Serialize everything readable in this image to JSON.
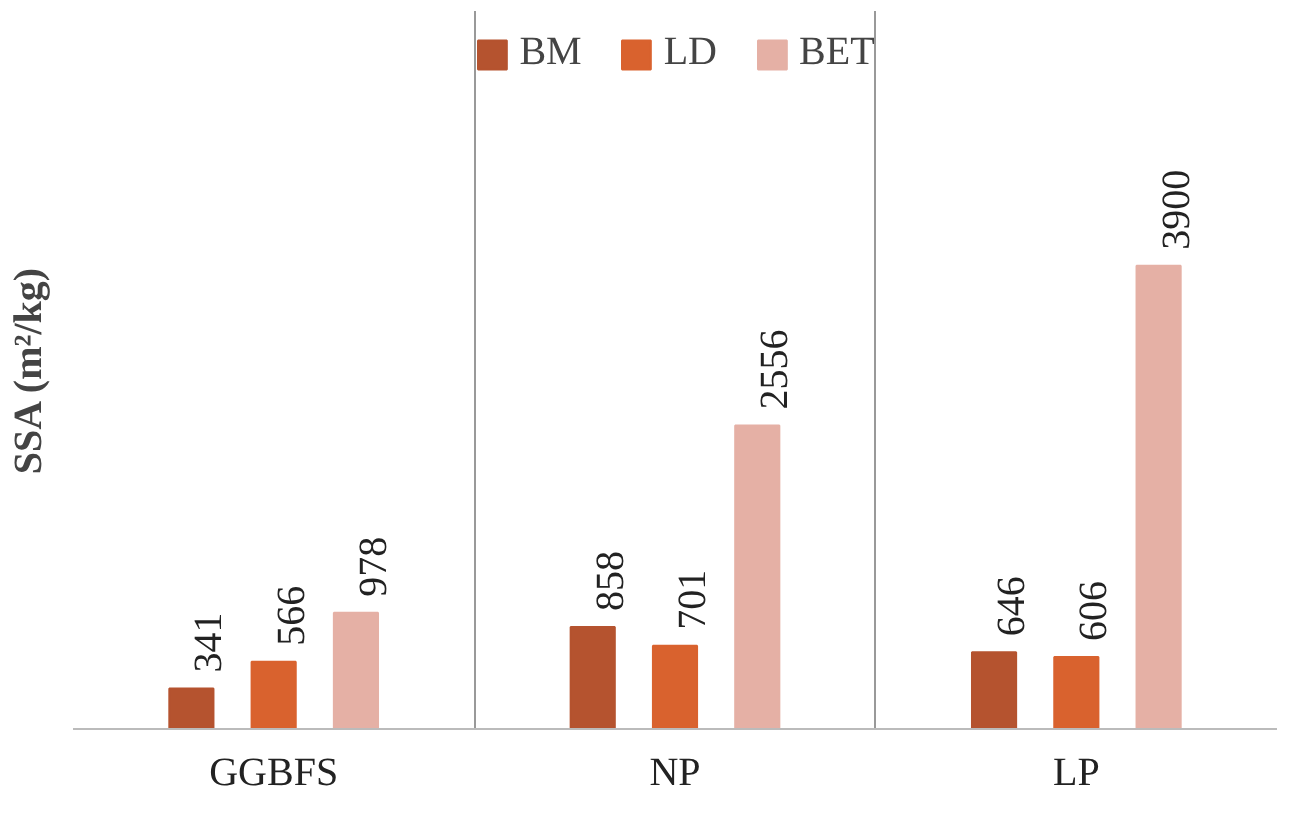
{
  "chart_data": {
    "type": "bar",
    "ylabel": "SSA (m²/kg)",
    "categories": [
      "GGBFS",
      "NP",
      "LP"
    ],
    "series": [
      {
        "name": "BM",
        "color": "#b5532f",
        "values": [
          341,
          858,
          646
        ]
      },
      {
        "name": "LD",
        "color": "#d9622e",
        "values": [
          566,
          701,
          606
        ]
      },
      {
        "name": "BET",
        "color": "#e5b0a5",
        "values": [
          978,
          2556,
          3900
        ]
      }
    ],
    "data_labels": true,
    "legend": "top",
    "grid": "x"
  }
}
